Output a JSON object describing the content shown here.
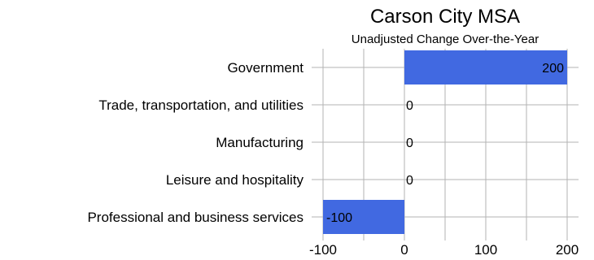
{
  "chart_data": {
    "type": "bar",
    "orientation": "horizontal",
    "title": "Carson City MSA",
    "subtitle": "Unadjusted Change Over-the-Year",
    "categories": [
      "Government",
      "Trade, transportation, and utilities",
      "Manufacturing",
      "Leisure and hospitality",
      "Professional and business services"
    ],
    "values": [
      200,
      0,
      0,
      0,
      -100
    ],
    "data_labels": [
      "200",
      "0",
      "0",
      "0",
      "-100"
    ],
    "xlim": [
      -100,
      200
    ],
    "xticks": [
      -100,
      0,
      100,
      200
    ],
    "xtick_labels": [
      "-100",
      "0",
      "100",
      "200"
    ],
    "grid": true,
    "bar_color": "#4169e1"
  }
}
